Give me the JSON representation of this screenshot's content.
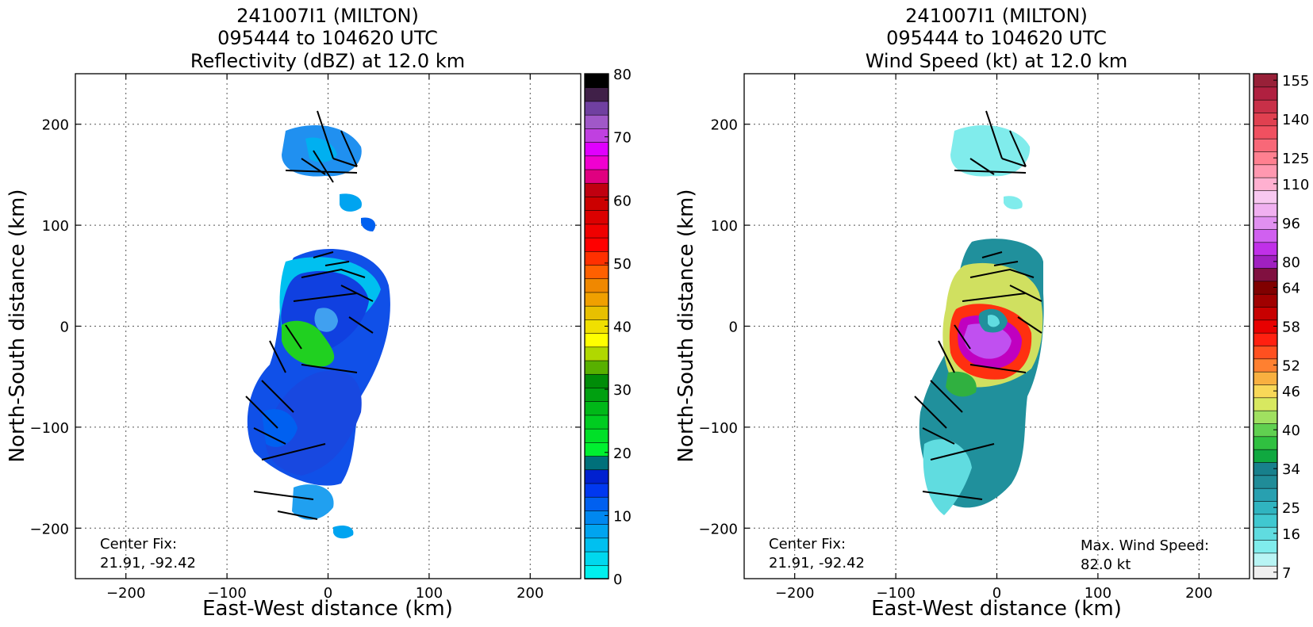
{
  "chart_data": [
    {
      "type": "heatmap",
      "title_lines": [
        "241007I1 (MILTON)",
        "095444 to 104620 UTC",
        "Reflectivity (dBZ) at 12.0 km"
      ],
      "xlabel": "East-West distance (km)",
      "ylabel": "North-South distance (km)",
      "xlim": [
        -250,
        250
      ],
      "ylim": [
        -250,
        250
      ],
      "xticks": [
        "−200",
        "−100",
        "0",
        "100",
        "200"
      ],
      "yticks": [
        "200",
        "100",
        "0",
        "−100",
        "−200"
      ],
      "grid": true,
      "center_fix_label": "Center Fix:",
      "center_fix_value": "21.91, -92.42",
      "colorbar": {
        "vmin": 0,
        "vmax": 80,
        "tick_labels": [
          "0",
          "10",
          "20",
          "30",
          "40",
          "50",
          "60",
          "70",
          "80"
        ],
        "colors": [
          "#00f0ee",
          "#00d8ee",
          "#00c0f0",
          "#00a4f0",
          "#0088f0",
          "#0060f0",
          "#0038f0",
          "#0020d0",
          "#00707a",
          "#00f030",
          "#00e028",
          "#00cc20",
          "#00b818",
          "#00a010",
          "#008c08",
          "#58b000",
          "#b0d800",
          "#ffff00",
          "#f0e000",
          "#e8c000",
          "#f0a000",
          "#f08800",
          "#ff6000",
          "#ff3000",
          "#ff0000",
          "#f00000",
          "#dc0000",
          "#cc0000",
          "#c00010",
          "#e00080",
          "#f000d0",
          "#e000ff",
          "#c040e0",
          "#a058c8",
          "#7040a0",
          "#402048",
          "#000000"
        ]
      }
    },
    {
      "type": "heatmap",
      "title_lines": [
        "241007I1 (MILTON)",
        "095444 to 104620 UTC",
        "Wind Speed (kt) at 12.0 km"
      ],
      "xlabel": "East-West distance (km)",
      "ylabel": "North-South distance (km)",
      "xlim": [
        -250,
        250
      ],
      "ylim": [
        -250,
        250
      ],
      "xticks": [
        "−200",
        "−100",
        "0",
        "100",
        "200"
      ],
      "yticks": [
        "200",
        "100",
        "0",
        "−100",
        "−200"
      ],
      "grid": true,
      "center_fix_label": "Center Fix:",
      "center_fix_value": "21.91, -92.42",
      "max_wind_label": "Max. Wind Speed:",
      "max_wind_value": "82.0 kt",
      "colorbar": {
        "tick_labels": [
          "7",
          "16",
          "25",
          "34",
          "40",
          "46",
          "52",
          "58",
          "64",
          "80",
          "96",
          "110",
          "125",
          "140",
          "155"
        ],
        "colors": [
          "#f0f0f0",
          "#b8f4f4",
          "#80ecec",
          "#60dce0",
          "#40c8d0",
          "#30b4c0",
          "#28a0b0",
          "#208c98",
          "#18808c",
          "#10a840",
          "#30c040",
          "#60d050",
          "#a0e060",
          "#d8e860",
          "#f8d858",
          "#f8b040",
          "#ff8030",
          "#ff5020",
          "#ff2010",
          "#e80000",
          "#c80000",
          "#a00000",
          "#800000",
          "#801040",
          "#a020c0",
          "#c030e8",
          "#d060f0",
          "#e090f0",
          "#f0b0f0",
          "#f8c8f0",
          "#ffb0d0",
          "#ff98b0",
          "#ff8090",
          "#f86878",
          "#f05060",
          "#e04050",
          "#c83048",
          "#b02040",
          "#982038"
        ]
      }
    }
  ]
}
